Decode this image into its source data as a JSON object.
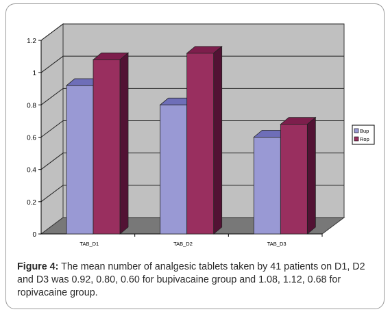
{
  "chart_data": {
    "type": "bar",
    "categories": [
      "TAB_D1",
      "TAB_D2",
      "TAB_D3"
    ],
    "series": [
      {
        "name": "Bup",
        "values": [
          0.92,
          0.8,
          0.6
        ]
      },
      {
        "name": "Rop",
        "values": [
          1.08,
          1.12,
          0.68
        ]
      }
    ],
    "ylim": [
      0,
      1.2
    ],
    "yticks": [
      "0",
      "0.2",
      "0.4",
      "0.6",
      "0.8",
      "1",
      "1.2"
    ],
    "grid": true,
    "legend_position": "right",
    "three_d": true,
    "colors": {
      "bup_front": "#9999d4",
      "bup_top": "#6e6eb8",
      "bup_side": "#5c5ca8",
      "rop_front": "#992f5f",
      "rop_top": "#7d1e4c",
      "rop_side": "#521234",
      "wall": "#c0c0c0",
      "floor": "#787878",
      "grid": "#222222"
    }
  },
  "caption": {
    "label": "Figure 4:",
    "text": " The mean number of analgesic tablets taken by 41 patients on D1, D2 and D3 was 0.92, 0.80, 0.60 for bupivacaine group and 1.08, 1.12, 0.68 for ropivacaine group."
  }
}
